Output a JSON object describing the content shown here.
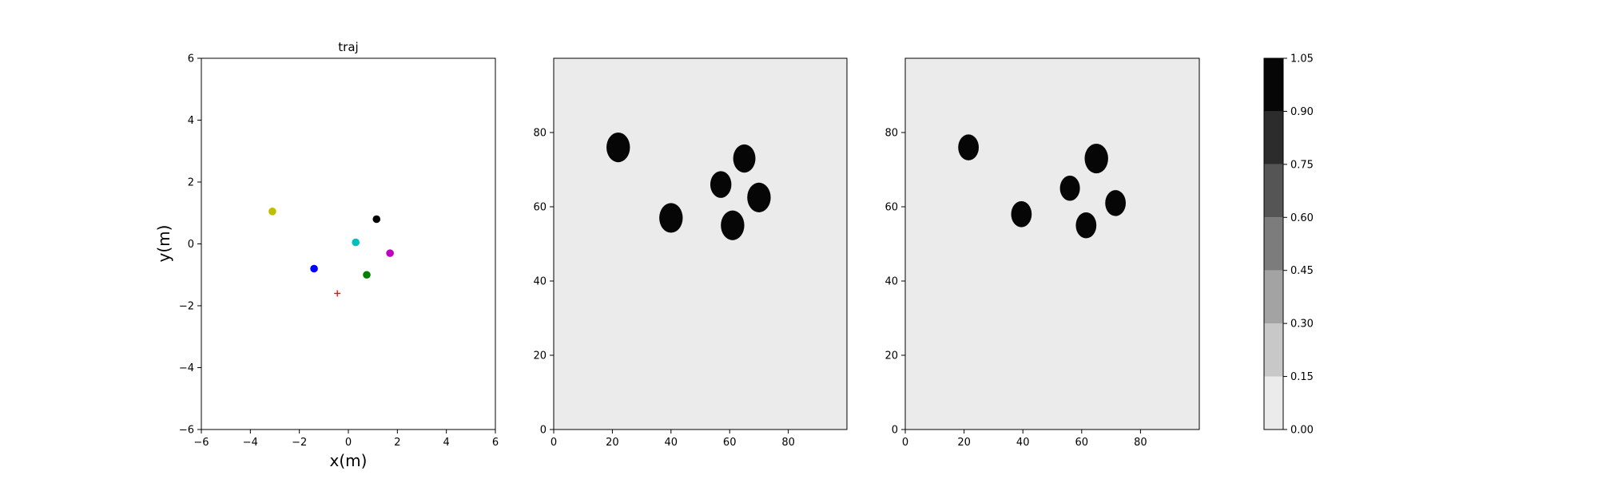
{
  "chart_data": [
    {
      "type": "scatter",
      "title": "traj",
      "xlabel": "x(m)",
      "ylabel": "y(m)",
      "xlim": [
        -6,
        6
      ],
      "ylim": [
        -6,
        6
      ],
      "xticks": [
        "−6",
        "−4",
        "−2",
        "0",
        "2",
        "4",
        "6"
      ],
      "yticks": [
        "−6",
        "−4",
        "−2",
        "0",
        "2",
        "4",
        "6"
      ],
      "grid": false,
      "points": [
        {
          "x": -3.1,
          "y": 1.05,
          "color": "#bfbf00",
          "marker": "circle"
        },
        {
          "x": 1.15,
          "y": 0.8,
          "color": "#000000",
          "marker": "circle"
        },
        {
          "x": 0.3,
          "y": 0.05,
          "color": "#00bfbf",
          "marker": "circle"
        },
        {
          "x": 1.7,
          "y": -0.3,
          "color": "#bf00bf",
          "marker": "circle"
        },
        {
          "x": -1.4,
          "y": -0.8,
          "color": "#0000ff",
          "marker": "circle"
        },
        {
          "x": 0.75,
          "y": -1.0,
          "color": "#008000",
          "marker": "circle"
        },
        {
          "x": -0.45,
          "y": -1.6,
          "color": "#ff0000",
          "marker": "plus"
        }
      ]
    },
    {
      "type": "heatmap",
      "title": "",
      "xlim": [
        0,
        100
      ],
      "ylim": [
        0,
        100
      ],
      "xticks": [
        "0",
        "20",
        "40",
        "60",
        "80"
      ],
      "yticks": [
        "0",
        "20",
        "40",
        "60",
        "80"
      ],
      "background_value": 0.05,
      "blobs": [
        {
          "x": 22,
          "y": 76,
          "r": 4,
          "value": 1.0
        },
        {
          "x": 40,
          "y": 57,
          "r": 4,
          "value": 1.0
        },
        {
          "x": 57,
          "y": 66,
          "r": 3.6,
          "value": 1.0
        },
        {
          "x": 65,
          "y": 73,
          "r": 3.8,
          "value": 1.0
        },
        {
          "x": 61,
          "y": 55,
          "r": 4,
          "value": 1.0
        },
        {
          "x": 70,
          "y": 62.5,
          "r": 4,
          "value": 1.0
        }
      ]
    },
    {
      "type": "heatmap",
      "title": "",
      "xlim": [
        0,
        100
      ],
      "ylim": [
        0,
        100
      ],
      "xticks": [
        "0",
        "20",
        "40",
        "60",
        "80"
      ],
      "yticks": [
        "0",
        "20",
        "40",
        "60",
        "80"
      ],
      "background_value": 0.05,
      "blobs": [
        {
          "x": 21.5,
          "y": 76,
          "r": 3.5,
          "value": 1.0
        },
        {
          "x": 39.5,
          "y": 58,
          "r": 3.5,
          "value": 1.0
        },
        {
          "x": 56,
          "y": 65,
          "r": 3.4,
          "value": 1.0
        },
        {
          "x": 65,
          "y": 73,
          "r": 4,
          "value": 1.0
        },
        {
          "x": 61.5,
          "y": 55,
          "r": 3.5,
          "value": 1.0
        },
        {
          "x": 71.5,
          "y": 61,
          "r": 3.5,
          "value": 1.0
        }
      ]
    }
  ],
  "colorbar": {
    "levels": [
      0.0,
      0.15,
      0.3,
      0.45,
      0.6,
      0.75,
      0.9,
      1.05
    ],
    "labels": [
      "0.00",
      "0.15",
      "0.30",
      "0.45",
      "0.60",
      "0.75",
      "0.90",
      "1.05"
    ],
    "colors": [
      "#ebebeb",
      "#c8c8c8",
      "#a3a3a3",
      "#7c7c7c",
      "#555555",
      "#2c2c2c",
      "#060606"
    ]
  }
}
